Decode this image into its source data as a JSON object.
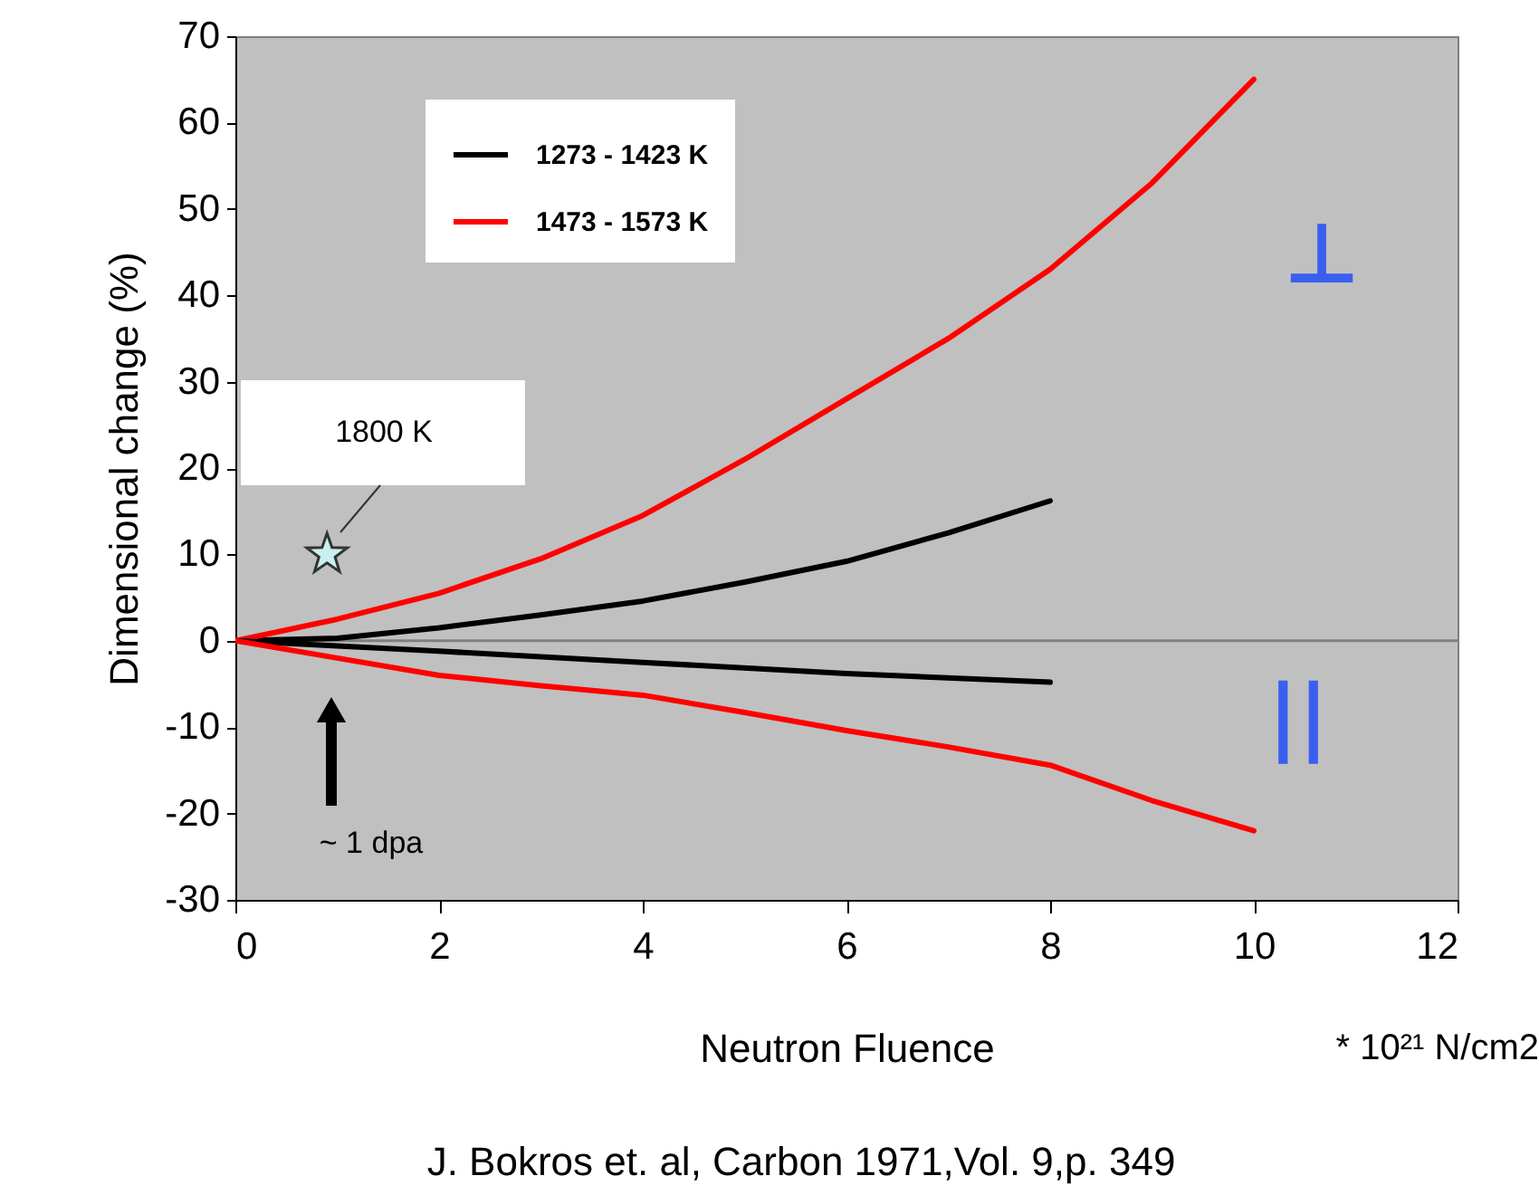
{
  "chart_data": {
    "type": "line",
    "xlabel": "Neutron Fluence",
    "ylabel": "Dimensional change (%)",
    "xlim": [
      0,
      12
    ],
    "xticks": [
      0,
      2,
      4,
      6,
      8,
      10,
      12
    ],
    "ylim": [
      -30,
      70
    ],
    "yticks": [
      -30,
      -20,
      -10,
      0,
      10,
      20,
      30,
      40,
      50,
      60,
      70
    ],
    "grid": false,
    "legend": "top left",
    "line_style": "solid",
    "marker": "none",
    "series": [
      {
        "name": "1273 - 1423 K",
        "color": "#000000",
        "x": [
          0,
          1,
          2,
          3,
          4,
          5,
          6,
          7,
          8
        ],
        "values": [
          0,
          0.3,
          1.5,
          3,
          4.6,
          6.8,
          9.2,
          12.5,
          16.2
        ]
      },
      {
        "name": "1473 - 1573 K",
        "color": "#ff0000",
        "x": [
          0,
          1,
          2,
          3,
          4,
          5,
          6,
          7,
          8,
          9,
          10
        ],
        "values": [
          0,
          2.5,
          5.5,
          9.5,
          14.5,
          21,
          28,
          35,
          43,
          53,
          65
        ]
      },
      {
        "color": "#000000",
        "x": [
          0,
          2,
          4,
          6,
          8
        ],
        "values": [
          0,
          -1.2,
          -2.5,
          -3.8,
          -4.8
        ]
      },
      {
        "color": "#ff0000",
        "x": [
          0,
          1,
          2,
          3,
          4,
          5,
          6,
          7,
          8,
          9,
          10
        ],
        "values": [
          0,
          -2,
          -4,
          -5.2,
          -6.3,
          -8.3,
          -10.4,
          -12.3,
          -14.4,
          -18.5,
          -22
        ]
      },
      {
        "type": "scatter",
        "marker": "star",
        "color": "#c8f0f0",
        "x": [
          0.9
        ],
        "values": [
          10
        ]
      }
    ],
    "ref_lines": [
      {
        "axis": "y",
        "value": 0,
        "color": "#808080"
      }
    ],
    "annotations": [
      "1800 K",
      "~ 1 dpa",
      "⊥",
      "||",
      "* 10²¹ N/cm2",
      "J. Bokros et. al, Carbon 1971,Vol. 9,p. 349"
    ]
  }
}
